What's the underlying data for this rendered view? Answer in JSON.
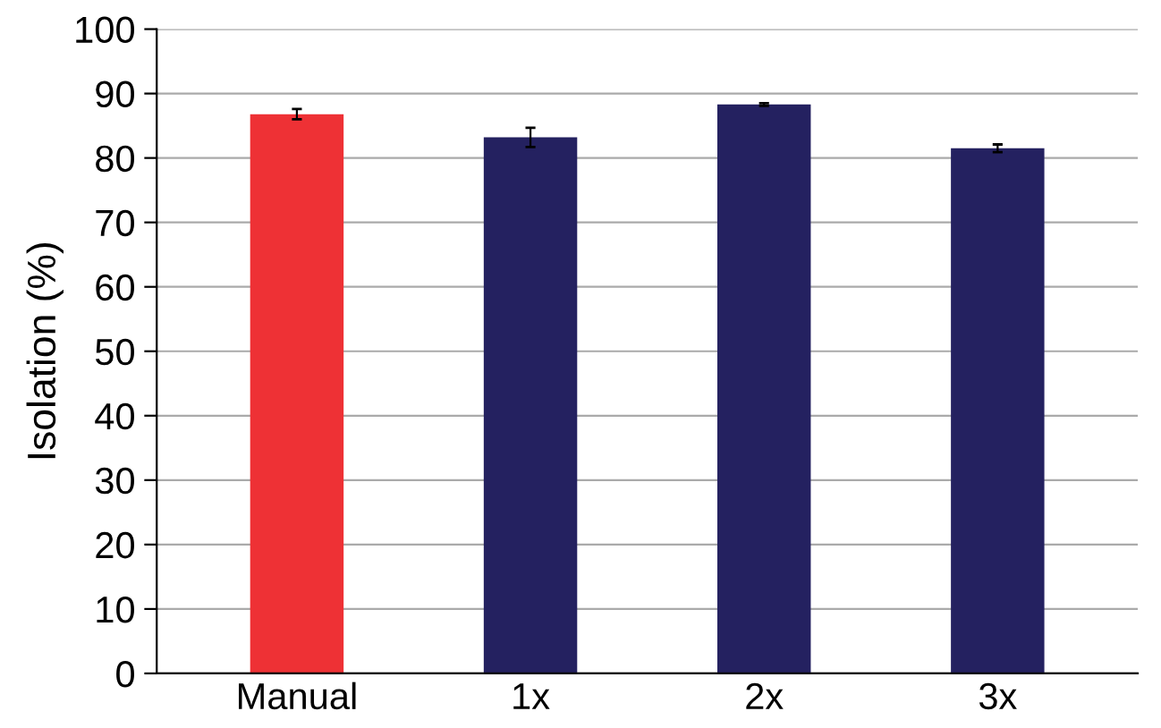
{
  "chart_data": {
    "type": "bar",
    "ylabel": "Isolation (%)",
    "categories": [
      "Manual",
      "1x",
      "2x",
      "3x"
    ],
    "values": [
      86.8,
      83.2,
      88.3,
      81.5
    ],
    "colors": [
      "#ee3135",
      "#242160",
      "#242160",
      "#242160"
    ],
    "errors": [
      0.8,
      1.5,
      0.2,
      0.6
    ],
    "ylim": [
      0,
      100
    ],
    "yticks": [
      0,
      10,
      20,
      30,
      40,
      50,
      60,
      70,
      80,
      90,
      100
    ],
    "grid": "y"
  }
}
